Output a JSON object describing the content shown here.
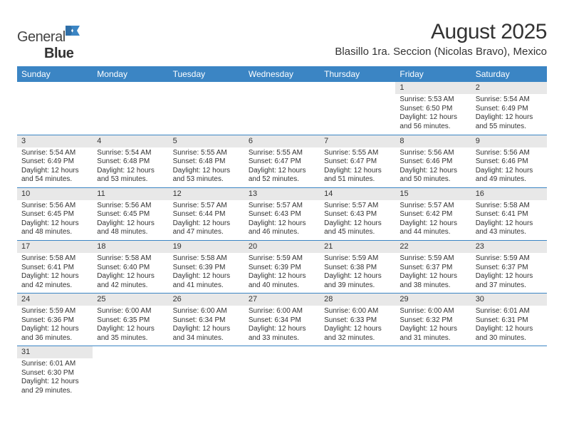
{
  "logo": {
    "part1": "General",
    "part2": "Blue"
  },
  "title": "August 2025",
  "location": "Blasillo 1ra. Seccion (Nicolas Bravo), Mexico",
  "colors": {
    "header_bg": "#3b85c4",
    "header_fg": "#ffffff",
    "daynum_bg": "#e8e8e8",
    "row_divider": "#3b85c4",
    "logo_accent": "#2f6fa8"
  },
  "weekdays": [
    "Sunday",
    "Monday",
    "Tuesday",
    "Wednesday",
    "Thursday",
    "Friday",
    "Saturday"
  ],
  "weeks": [
    [
      null,
      null,
      null,
      null,
      null,
      {
        "n": "1",
        "sr": "5:53 AM",
        "ss": "6:50 PM",
        "dl": "12 hours and 56 minutes."
      },
      {
        "n": "2",
        "sr": "5:54 AM",
        "ss": "6:49 PM",
        "dl": "12 hours and 55 minutes."
      }
    ],
    [
      {
        "n": "3",
        "sr": "5:54 AM",
        "ss": "6:49 PM",
        "dl": "12 hours and 54 minutes."
      },
      {
        "n": "4",
        "sr": "5:54 AM",
        "ss": "6:48 PM",
        "dl": "12 hours and 53 minutes."
      },
      {
        "n": "5",
        "sr": "5:55 AM",
        "ss": "6:48 PM",
        "dl": "12 hours and 53 minutes."
      },
      {
        "n": "6",
        "sr": "5:55 AM",
        "ss": "6:47 PM",
        "dl": "12 hours and 52 minutes."
      },
      {
        "n": "7",
        "sr": "5:55 AM",
        "ss": "6:47 PM",
        "dl": "12 hours and 51 minutes."
      },
      {
        "n": "8",
        "sr": "5:56 AM",
        "ss": "6:46 PM",
        "dl": "12 hours and 50 minutes."
      },
      {
        "n": "9",
        "sr": "5:56 AM",
        "ss": "6:46 PM",
        "dl": "12 hours and 49 minutes."
      }
    ],
    [
      {
        "n": "10",
        "sr": "5:56 AM",
        "ss": "6:45 PM",
        "dl": "12 hours and 48 minutes."
      },
      {
        "n": "11",
        "sr": "5:56 AM",
        "ss": "6:45 PM",
        "dl": "12 hours and 48 minutes."
      },
      {
        "n": "12",
        "sr": "5:57 AM",
        "ss": "6:44 PM",
        "dl": "12 hours and 47 minutes."
      },
      {
        "n": "13",
        "sr": "5:57 AM",
        "ss": "6:43 PM",
        "dl": "12 hours and 46 minutes."
      },
      {
        "n": "14",
        "sr": "5:57 AM",
        "ss": "6:43 PM",
        "dl": "12 hours and 45 minutes."
      },
      {
        "n": "15",
        "sr": "5:57 AM",
        "ss": "6:42 PM",
        "dl": "12 hours and 44 minutes."
      },
      {
        "n": "16",
        "sr": "5:58 AM",
        "ss": "6:41 PM",
        "dl": "12 hours and 43 minutes."
      }
    ],
    [
      {
        "n": "17",
        "sr": "5:58 AM",
        "ss": "6:41 PM",
        "dl": "12 hours and 42 minutes."
      },
      {
        "n": "18",
        "sr": "5:58 AM",
        "ss": "6:40 PM",
        "dl": "12 hours and 42 minutes."
      },
      {
        "n": "19",
        "sr": "5:58 AM",
        "ss": "6:39 PM",
        "dl": "12 hours and 41 minutes."
      },
      {
        "n": "20",
        "sr": "5:59 AM",
        "ss": "6:39 PM",
        "dl": "12 hours and 40 minutes."
      },
      {
        "n": "21",
        "sr": "5:59 AM",
        "ss": "6:38 PM",
        "dl": "12 hours and 39 minutes."
      },
      {
        "n": "22",
        "sr": "5:59 AM",
        "ss": "6:37 PM",
        "dl": "12 hours and 38 minutes."
      },
      {
        "n": "23",
        "sr": "5:59 AM",
        "ss": "6:37 PM",
        "dl": "12 hours and 37 minutes."
      }
    ],
    [
      {
        "n": "24",
        "sr": "5:59 AM",
        "ss": "6:36 PM",
        "dl": "12 hours and 36 minutes."
      },
      {
        "n": "25",
        "sr": "6:00 AM",
        "ss": "6:35 PM",
        "dl": "12 hours and 35 minutes."
      },
      {
        "n": "26",
        "sr": "6:00 AM",
        "ss": "6:34 PM",
        "dl": "12 hours and 34 minutes."
      },
      {
        "n": "27",
        "sr": "6:00 AM",
        "ss": "6:34 PM",
        "dl": "12 hours and 33 minutes."
      },
      {
        "n": "28",
        "sr": "6:00 AM",
        "ss": "6:33 PM",
        "dl": "12 hours and 32 minutes."
      },
      {
        "n": "29",
        "sr": "6:00 AM",
        "ss": "6:32 PM",
        "dl": "12 hours and 31 minutes."
      },
      {
        "n": "30",
        "sr": "6:01 AM",
        "ss": "6:31 PM",
        "dl": "12 hours and 30 minutes."
      }
    ],
    [
      {
        "n": "31",
        "sr": "6:01 AM",
        "ss": "6:30 PM",
        "dl": "12 hours and 29 minutes."
      },
      null,
      null,
      null,
      null,
      null,
      null
    ]
  ],
  "labels": {
    "sunrise": "Sunrise: ",
    "sunset": "Sunset: ",
    "daylight": "Daylight: "
  }
}
